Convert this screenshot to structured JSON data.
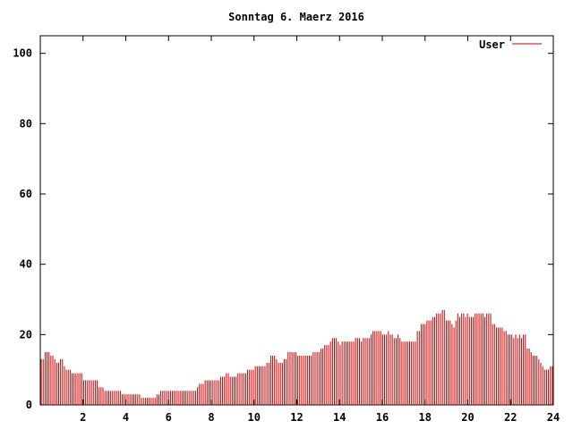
{
  "chart_data": {
    "type": "bar",
    "title": "Sonntag 6. Maerz 2016",
    "xlabel": "",
    "ylabel": "",
    "xlim": [
      0,
      24
    ],
    "ylim": [
      0,
      105
    ],
    "x_ticks": [
      2,
      4,
      6,
      8,
      10,
      12,
      14,
      16,
      18,
      20,
      22,
      24
    ],
    "y_ticks": [
      0,
      20,
      40,
      60,
      80,
      100
    ],
    "grid": false,
    "legend_position": "top-right",
    "series": [
      {
        "name": "User",
        "color": "#cc0000",
        "values": [
          13,
          13,
          15,
          15,
          15,
          14,
          14,
          13,
          12,
          12,
          13,
          13,
          11,
          10,
          10,
          10,
          9,
          9,
          9,
          9,
          9,
          9,
          7,
          7,
          7,
          7,
          7,
          7,
          7,
          7,
          5,
          5,
          5,
          4,
          4,
          4,
          4,
          4,
          4,
          4,
          4,
          4,
          3,
          3,
          3,
          3,
          3,
          3,
          3,
          3,
          3,
          3,
          2,
          2,
          2,
          2,
          2,
          2,
          2,
          2,
          3,
          3,
          4,
          4,
          4,
          4,
          4,
          4,
          4,
          4,
          4,
          4,
          4,
          4,
          4,
          4,
          4,
          4,
          4,
          4,
          4,
          5,
          6,
          6,
          6,
          7,
          7,
          7,
          7,
          7,
          7,
          7,
          7,
          8,
          8,
          8,
          9,
          9,
          8,
          8,
          8,
          8,
          9,
          9,
          9,
          9,
          9,
          10,
          10,
          10,
          10,
          11,
          11,
          11,
          11,
          11,
          11,
          12,
          12,
          14,
          14,
          14,
          13,
          12,
          12,
          12,
          13,
          13,
          15,
          15,
          15,
          15,
          15,
          14,
          14,
          14,
          14,
          14,
          14,
          14,
          14,
          15,
          15,
          15,
          15,
          16,
          16,
          17,
          17,
          17,
          18,
          19,
          19,
          19,
          18,
          17,
          18,
          18,
          18,
          18,
          18,
          18,
          18,
          19,
          19,
          19,
          18,
          19,
          19,
          19,
          19,
          20,
          21,
          21,
          21,
          21,
          21,
          20,
          20,
          20,
          21,
          20,
          20,
          19,
          19,
          20,
          19,
          18,
          18,
          18,
          18,
          18,
          18,
          18,
          18,
          21,
          21,
          23,
          23,
          23,
          24,
          24,
          24,
          25,
          25,
          26,
          26,
          26,
          27,
          27,
          24,
          24,
          24,
          23,
          22,
          24,
          26,
          25,
          26,
          26,
          25,
          26,
          25,
          25,
          25,
          26,
          26,
          26,
          26,
          26,
          25,
          26,
          26,
          26,
          23,
          23,
          22,
          22,
          22,
          22,
          21,
          21,
          20,
          20,
          20,
          19,
          20,
          19,
          20,
          19,
          20,
          20,
          16,
          16,
          15,
          14,
          14,
          14,
          13,
          12,
          11,
          10,
          10,
          10,
          11,
          11
        ]
      }
    ]
  }
}
